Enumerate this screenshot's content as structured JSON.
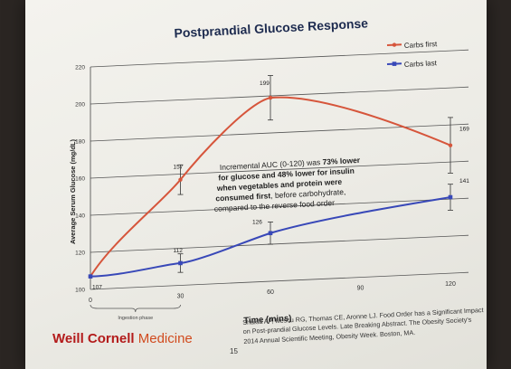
{
  "chart_data": {
    "type": "line",
    "title": "Postprandial Glucose Response",
    "xlabel": "Time (mins)",
    "ylabel": "Average Serum Glucose (mg/dL)",
    "x": [
      0,
      30,
      60,
      120
    ],
    "x_ticks": [
      "0",
      "30",
      "60",
      "90",
      "120"
    ],
    "y_ticks": [
      "100",
      "120",
      "140",
      "160",
      "180",
      "200",
      "220"
    ],
    "ylim": [
      100,
      220
    ],
    "xlim": [
      0,
      120
    ],
    "series": [
      {
        "name": "Carbs first",
        "color": "#d6553b",
        "values": [
          107,
          157,
          199,
          169
        ],
        "labels": [
          "",
          "157",
          "199",
          "169"
        ],
        "err": [
          0,
          8,
          12,
          15
        ]
      },
      {
        "name": "Carbs last",
        "color": "#3848b8",
        "values": [
          107,
          112,
          126,
          141
        ],
        "labels": [
          "107",
          "112",
          "126",
          "141"
        ],
        "err": [
          0,
          5,
          6,
          7
        ]
      }
    ],
    "legend": "top-right",
    "grid": true,
    "annotation_lines": [
      {
        "text": "Incremental AUC (0-120) was ",
        "bold": "73% lower"
      },
      {
        "text": "for glucose and 48% lower for insulin",
        "bold_all": true
      },
      {
        "text": "when vegetables and protein were",
        "bold_all": true
      },
      {
        "text": "consumed first",
        "bold_all": true,
        "suffix": ", before carbohydrate,"
      },
      {
        "text": "compared to the reverse food order"
      }
    ],
    "ingestion_label": "Ingestion phase"
  },
  "footer": {
    "logo_word1": "Weill Cornell",
    "logo_word2": "Medicine",
    "slide_number": "15",
    "citation": "Shukla AP, Iliescu RG, Thomas CE, Aronne LJ. Food Order has a Significant Impact on Post-prandial Glucose Levels. Late Breaking Abstract. The Obesity Society's 2014 Annual Scientific Meeting, Obesity Week. Boston, MA."
  }
}
